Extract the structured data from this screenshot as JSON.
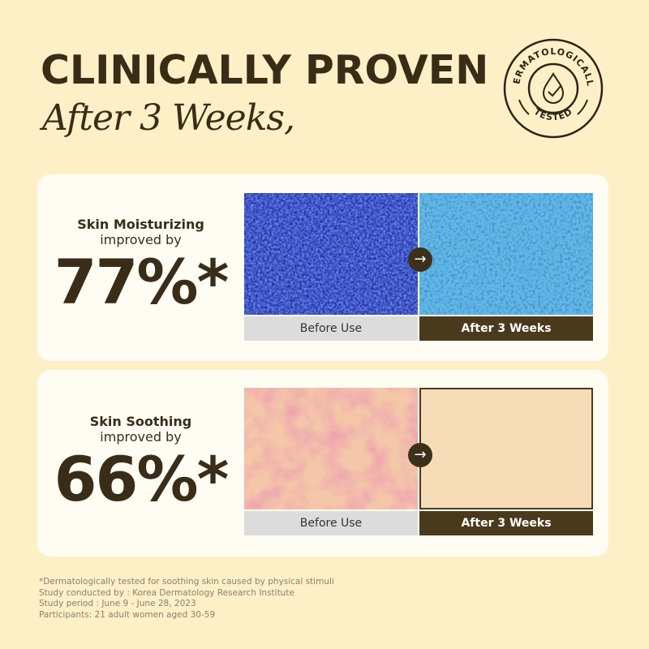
{
  "header": {
    "title": "CLINICALLY PROVEN",
    "subtitle": "After 3 Weeks,"
  },
  "badge": {
    "top_text": "DERMATOLOGICALLY",
    "bottom_text": "TESTED",
    "icon": "drop-check-icon"
  },
  "results": [
    {
      "label_line1": "Skin Moisturizing",
      "label_line2": "improved by",
      "percent": "77%*",
      "before_label": "Before Use",
      "after_label": "After 3 Weeks"
    },
    {
      "label_line1": "Skin Soothing",
      "label_line2": "improved by",
      "percent": "66%*",
      "before_label": "Before Use",
      "after_label": "After 3 Weeks"
    }
  ],
  "footnotes": [
    "*Dermatologically tested for soothing skin caused by physical stimuli",
    "Study conducted by : Korea Dermatology Research Institute",
    "Study period : June 9 - June 28, 2023",
    "Participants: 21 adult women aged 30-59"
  ],
  "colors": {
    "background": "#fdf0c6",
    "brand_brown": "#3a2d17",
    "card": "#fffcf3"
  }
}
